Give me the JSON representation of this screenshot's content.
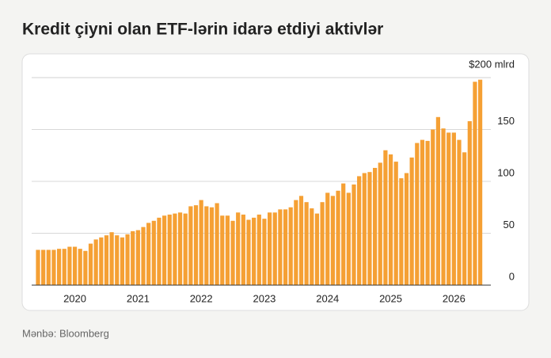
{
  "chart_data": {
    "type": "bar",
    "title": "Kredit çiyni olan ETF-lərin idarə etdiyi aktivlər",
    "source": "Mənbə: Bloomberg",
    "color": "#f5a034",
    "categories": [
      null,
      null,
      null,
      null,
      null,
      null,
      null,
      "2020",
      null,
      null,
      null,
      null,
      null,
      null,
      null,
      null,
      null,
      null,
      null,
      "2021",
      null,
      null,
      null,
      null,
      null,
      null,
      null,
      null,
      null,
      null,
      null,
      "2022",
      null,
      null,
      null,
      null,
      null,
      null,
      null,
      null,
      null,
      null,
      null,
      "2023",
      null,
      null,
      null,
      null,
      null,
      null,
      null,
      null,
      null,
      null,
      null,
      "2024",
      null,
      null,
      null,
      null,
      null,
      null,
      null,
      null,
      null,
      null,
      null,
      "2025",
      null,
      null,
      null,
      null,
      null,
      null,
      null,
      null,
      null,
      null,
      null,
      "2026",
      null,
      null,
      null,
      null,
      null
    ],
    "values": [
      34,
      34,
      34,
      34,
      35,
      35,
      37,
      37,
      35,
      33,
      40,
      44,
      46,
      48,
      51,
      48,
      46,
      49,
      52,
      53,
      56,
      60,
      62,
      65,
      67,
      68,
      69,
      70,
      69,
      76,
      77,
      82,
      76,
      75,
      79,
      67,
      67,
      62,
      70,
      68,
      63,
      65,
      68,
      64,
      70,
      70,
      73,
      73,
      75,
      82,
      86,
      80,
      74,
      69,
      80,
      89,
      86,
      91,
      98,
      89,
      97,
      105,
      108,
      109,
      113,
      118,
      130,
      126,
      119,
      103,
      108,
      123,
      137,
      140,
      139,
      150,
      162,
      151,
      147,
      147,
      140,
      128,
      158,
      196,
      198
    ],
    "ylim": [
      0,
      200
    ],
    "yticks": [
      0,
      50,
      100,
      150,
      {
        "value": 200,
        "label": "$200 mlrd"
      }
    ],
    "grid": true
  }
}
